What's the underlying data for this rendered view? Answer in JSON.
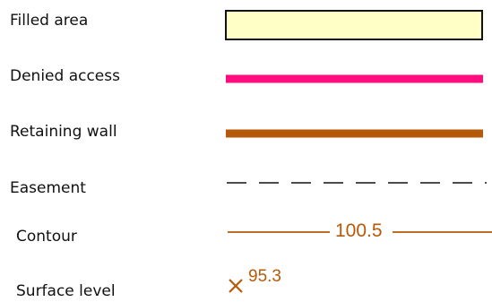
{
  "legend": {
    "items": [
      {
        "label": "Filled area",
        "symbol": "filled-area",
        "fill": "#FFFFC6",
        "stroke": "#111111"
      },
      {
        "label": "Denied access",
        "symbol": "solid-line",
        "color": "#FF0C7F"
      },
      {
        "label": "Retaining wall",
        "symbol": "solid-line",
        "color": "#B45A0A"
      },
      {
        "label": "Easement",
        "symbol": "dashed-line",
        "color": "#111111"
      },
      {
        "label": "Contour",
        "symbol": "contour-line",
        "color": "#B45A0A",
        "value": "100.5"
      },
      {
        "label": "Surface level",
        "symbol": "spot-height",
        "color": "#B45A0A",
        "value": "95.3"
      }
    ]
  }
}
